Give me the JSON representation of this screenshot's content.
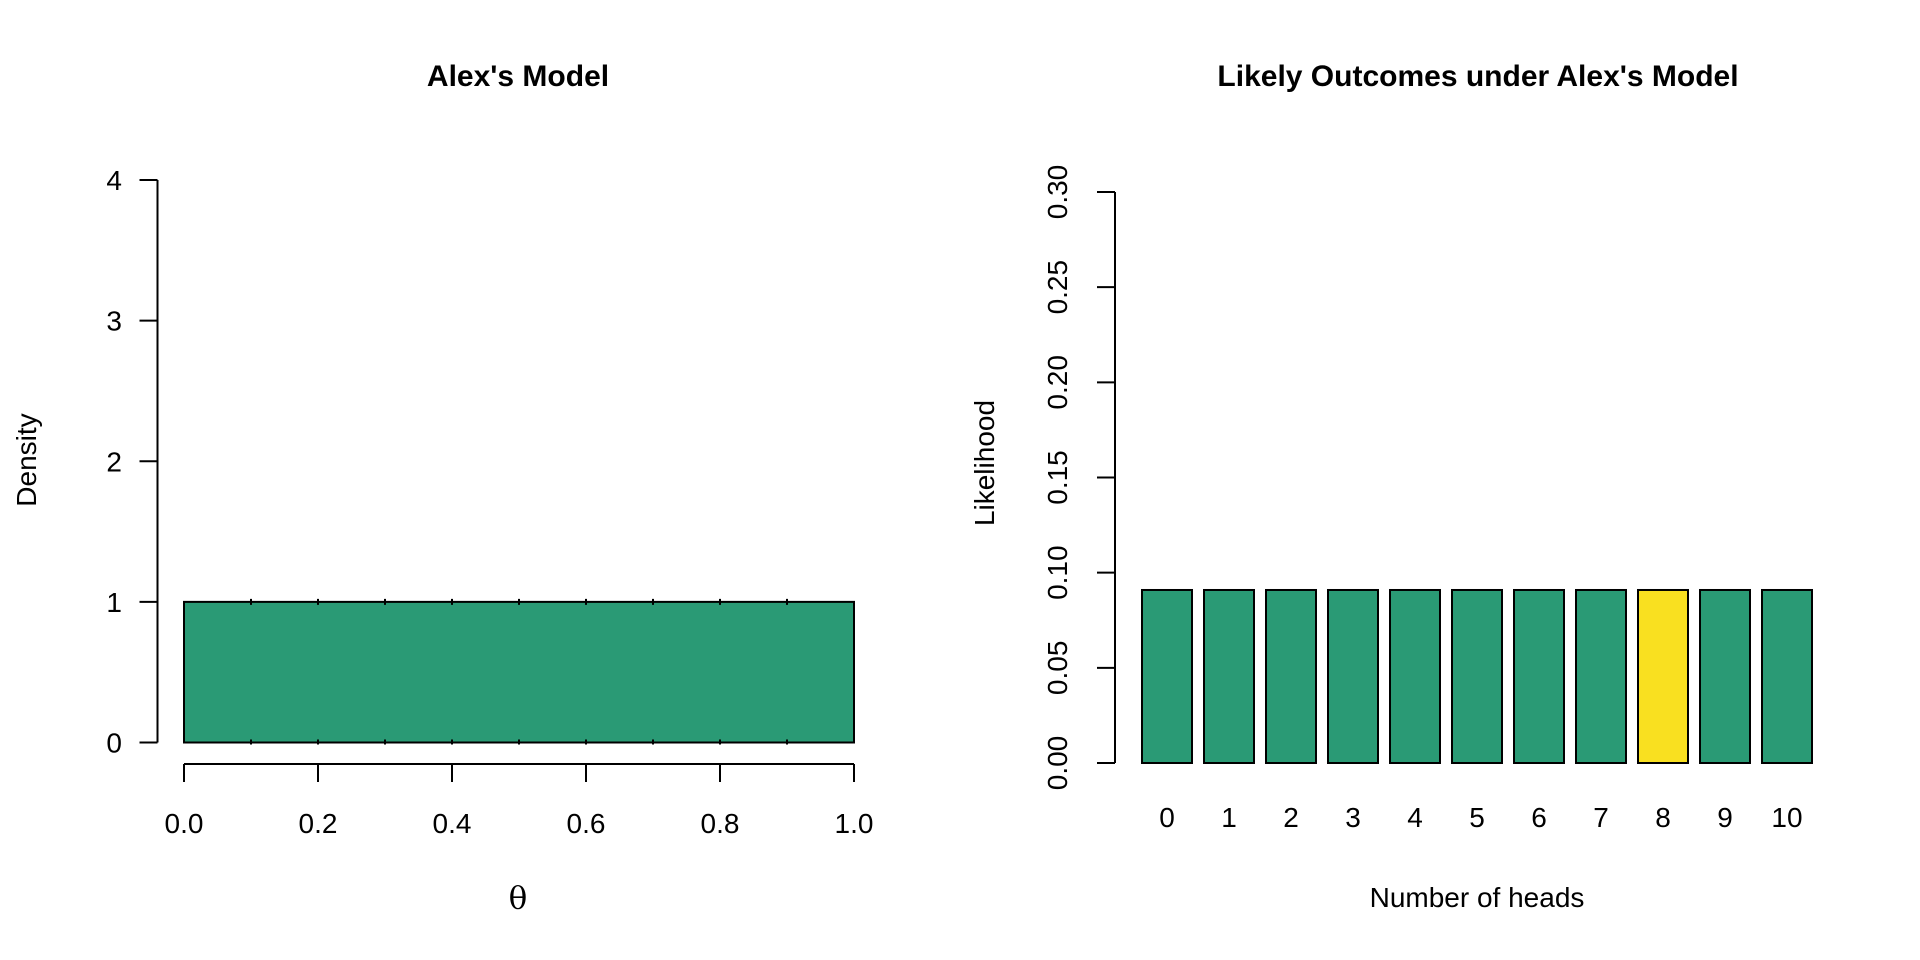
{
  "figure": {
    "background": "#ffffff",
    "text_color": "#000000"
  },
  "chart_data": [
    {
      "type": "area",
      "title": "Alex's Model",
      "xlabel": "θ",
      "ylabel": "Density",
      "x_range": [
        0,
        1
      ],
      "ylim": [
        0,
        4
      ],
      "x_tick_values": [
        0.0,
        0.2,
        0.4,
        0.6,
        0.8,
        1.0
      ],
      "x_tick_labels": [
        "0.0",
        "0.2",
        "0.4",
        "0.6",
        "0.8",
        "1.0"
      ],
      "y_tick_values": [
        0,
        1,
        2,
        3,
        4
      ],
      "y_tick_labels": [
        "0",
        "1",
        "2",
        "3",
        "4"
      ],
      "series": [
        {
          "name": "uniform-prior-density",
          "x": [
            0,
            1
          ],
          "y": [
            1,
            1
          ]
        }
      ],
      "segment_marks_x": [
        0.1,
        0.2,
        0.3,
        0.4,
        0.5,
        0.6,
        0.7,
        0.8,
        0.9
      ],
      "fill_color": "#2a9a75",
      "border_color": "#000000",
      "grid": false,
      "legend": false
    },
    {
      "type": "bar",
      "title": "Likely Outcomes under Alex's Model",
      "xlabel": "Number of heads",
      "ylabel": "Likelihood",
      "categories": [
        "0",
        "1",
        "2",
        "3",
        "4",
        "5",
        "6",
        "7",
        "8",
        "9",
        "10"
      ],
      "values": [
        0.0909,
        0.0909,
        0.0909,
        0.0909,
        0.0909,
        0.0909,
        0.0909,
        0.0909,
        0.0909,
        0.0909,
        0.0909
      ],
      "highlight_index": 8,
      "ylim": [
        0,
        0.3
      ],
      "y_tick_values": [
        0.0,
        0.05,
        0.1,
        0.15,
        0.2,
        0.25,
        0.3
      ],
      "y_tick_labels": [
        "0.00",
        "0.05",
        "0.10",
        "0.15",
        "0.20",
        "0.25",
        "0.30"
      ],
      "bar_color": "#2a9a75",
      "highlight_color": "#f9e020",
      "border_color": "#000000",
      "grid": false,
      "legend": false
    }
  ]
}
